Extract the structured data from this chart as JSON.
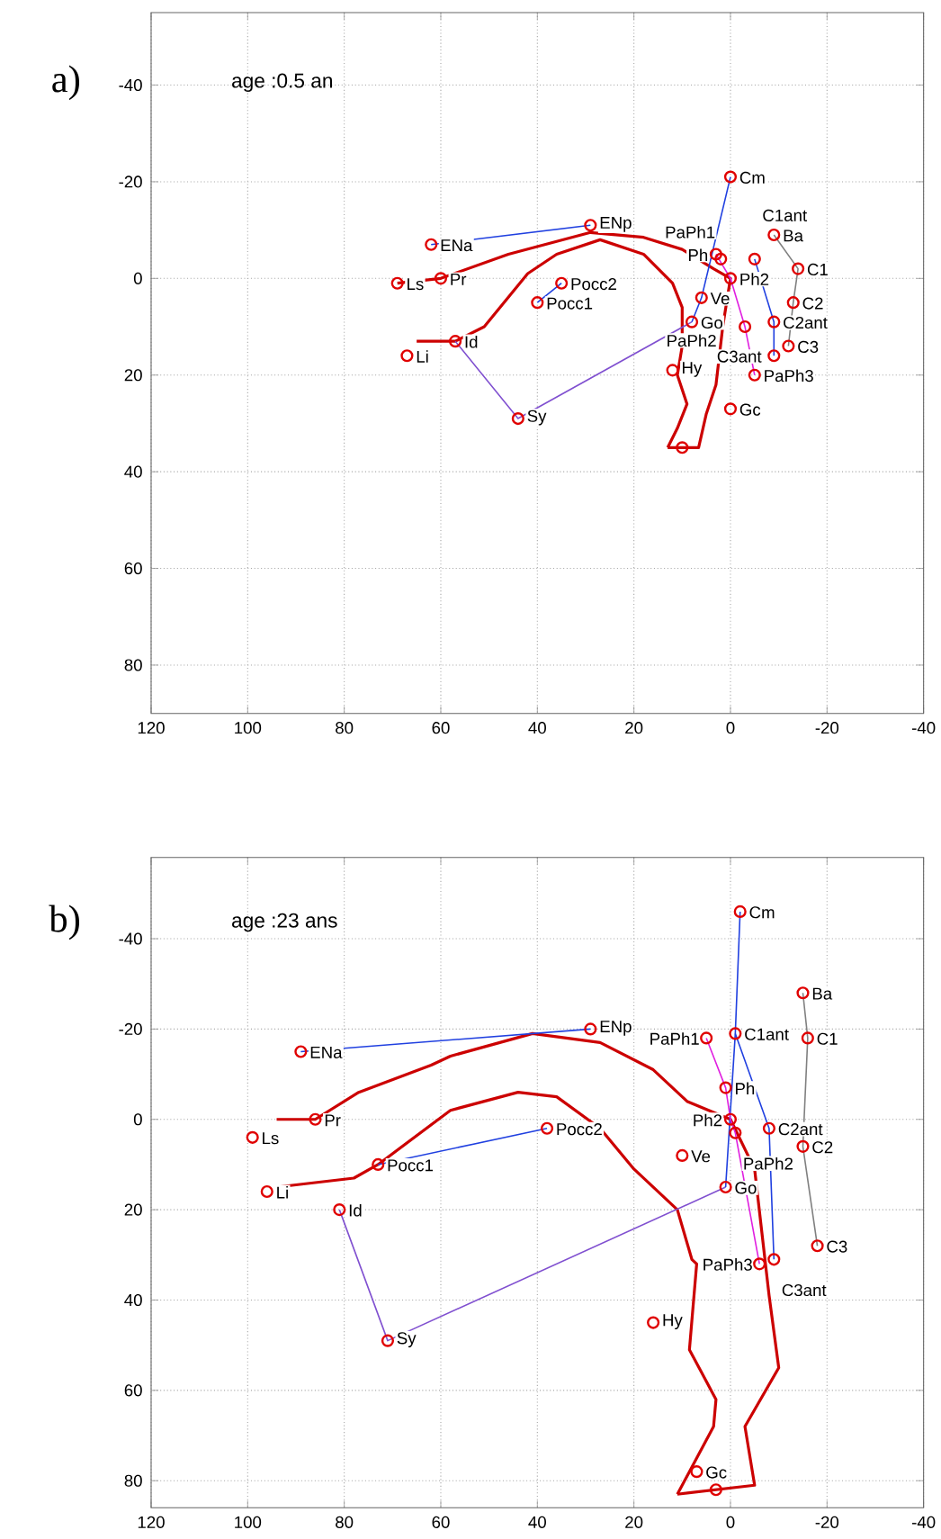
{
  "chart_data": [
    {
      "type": "scatter",
      "title": "a)",
      "xlim": [
        120,
        -40
      ],
      "ylim": [
        90,
        -55
      ],
      "xticks": [
        120,
        100,
        80,
        60,
        40,
        20,
        0,
        -20,
        -40
      ],
      "yticks": [
        -40,
        -20,
        0,
        20,
        40,
        60,
        80
      ],
      "grid": true,
      "series": [
        {
          "type": "line",
          "color": "#cc0000",
          "x": [
            69,
            60,
            46,
            29,
            18,
            10,
            3.5,
            0,
            1.6,
            3,
            5,
            6.6,
            13
          ],
          "values": [
            1,
            0,
            -5,
            -9.5,
            -8.5,
            -6,
            -2,
            0,
            10,
            22,
            28,
            35,
            35
          ]
        },
        {
          "type": "line",
          "color": "#cc0000",
          "x": [
            65,
            57,
            51,
            42,
            36,
            27,
            18,
            12,
            10,
            10,
            11,
            9,
            11,
            13
          ],
          "values": [
            13,
            13,
            10,
            -1,
            -5,
            -8,
            -5,
            1,
            6,
            14,
            20,
            26,
            31,
            35
          ]
        },
        {
          "type": "line",
          "color": "#2040e0",
          "x": [
            62,
            29
          ],
          "values": [
            -7,
            -11
          ]
        },
        {
          "type": "line",
          "color": "#2040e0",
          "x": [
            40,
            35
          ],
          "values": [
            5,
            1
          ]
        },
        {
          "type": "line",
          "color": "#8050d0",
          "x": [
            57,
            44,
            8
          ],
          "values": [
            13,
            29,
            9
          ]
        },
        {
          "type": "line",
          "color": "#2040e0",
          "x": [
            0,
            6,
            8
          ],
          "values": [
            -21,
            4,
            9
          ]
        },
        {
          "type": "line",
          "color": "#2040e0",
          "x": [
            -5,
            -9,
            -9
          ],
          "values": [
            -4,
            9,
            16
          ]
        },
        {
          "type": "line",
          "color": "#e020e0",
          "x": [
            3,
            0,
            -3,
            -5
          ],
          "values": [
            -5,
            0,
            10,
            20
          ]
        },
        {
          "type": "line",
          "color": "#808080",
          "x": [
            -9,
            -14,
            -13,
            -12
          ],
          "values": [
            -9,
            -2,
            5,
            14
          ]
        },
        {
          "marker": "circle",
          "color": "#e00000",
          "x": [
            0,
            -9,
            29,
            62,
            69,
            60,
            35,
            40,
            67,
            57,
            44,
            6,
            8,
            12,
            0,
            10,
            3,
            2,
            0,
            -5,
            -14,
            -13,
            -3,
            -9,
            -12,
            -9,
            -5
          ],
          "values": [
            -21,
            -9,
            -11,
            -7,
            1,
            0,
            1,
            5,
            16,
            13,
            29,
            4,
            9,
            19,
            27,
            35,
            -5,
            -4,
            0,
            -4,
            -2,
            5,
            10,
            9,
            14,
            16,
            20
          ]
        }
      ],
      "annotations": [
        "age :0.5 an",
        {
          "text": "Cm",
          "x": 0,
          "y": -21
        },
        {
          "text": "Ba",
          "x": -9,
          "y": -9
        },
        {
          "text": "ENp",
          "x": 29,
          "y": -11
        },
        {
          "text": "ENa",
          "x": 62,
          "y": -7
        },
        {
          "text": "Ls",
          "x": 69,
          "y": 1
        },
        {
          "text": "Pr",
          "x": 60,
          "y": 0
        },
        {
          "text": "Pocc2",
          "x": 35,
          "y": 1
        },
        {
          "text": "Pocc1",
          "x": 40,
          "y": 5
        },
        {
          "text": "Li",
          "x": 67,
          "y": 16
        },
        {
          "text": "Id",
          "x": 57,
          "y": 13
        },
        {
          "text": "Sy",
          "x": 44,
          "y": 29
        },
        {
          "text": "Ve",
          "x": 6,
          "y": 4
        },
        {
          "text": "Go",
          "x": 8,
          "y": 9
        },
        {
          "text": "Hy",
          "x": 12,
          "y": 19
        },
        {
          "text": "Gc",
          "x": 0,
          "y": 27
        },
        {
          "text": "Ph",
          "x": 3,
          "y": -5
        },
        {
          "text": "PaPh1",
          "x": 2,
          "y": -4
        },
        {
          "text": "Ph2",
          "x": 0,
          "y": 0
        },
        {
          "text": "C1ant",
          "x": -5,
          "y": -4
        },
        {
          "text": "C1",
          "x": -14,
          "y": -2
        },
        {
          "text": "C2",
          "x": -13,
          "y": 5
        },
        {
          "text": "PaPh2",
          "x": -3,
          "y": 10
        },
        {
          "text": "C2ant",
          "x": -9,
          "y": 9
        },
        {
          "text": "C3",
          "x": -12,
          "y": 14
        },
        {
          "text": "C3ant",
          "x": -9,
          "y": 16
        },
        {
          "text": "PaPh3",
          "x": -5,
          "y": 20
        }
      ]
    },
    {
      "type": "scatter",
      "title": "b)",
      "xlim": [
        120,
        -40
      ],
      "ylim": [
        86,
        -58
      ],
      "xticks": [
        120,
        100,
        80,
        60,
        40,
        20,
        0,
        -20,
        -40
      ],
      "yticks": [
        -40,
        -20,
        0,
        20,
        40,
        60,
        80
      ],
      "grid": true,
      "series": [
        {
          "type": "line",
          "color": "#cc0000",
          "x": [
            94,
            86,
            77,
            62,
            58,
            41,
            27,
            16,
            9,
            0,
            -5,
            -8,
            -10,
            -3,
            -5,
            11
          ],
          "values": [
            0,
            0,
            -6,
            -12,
            -14,
            -19,
            -17,
            -11,
            -4,
            0,
            11,
            39,
            55,
            68,
            81,
            83
          ]
        },
        {
          "type": "line",
          "color": "#cc0000",
          "x": [
            94,
            78,
            73,
            58,
            44,
            36,
            27,
            20,
            11,
            8,
            7,
            8.5,
            3,
            3.5,
            11
          ],
          "values": [
            15,
            13,
            10,
            -2,
            -6,
            -5,
            2,
            11,
            20,
            31,
            32,
            51,
            62,
            68,
            83
          ]
        },
        {
          "type": "line",
          "color": "#2040e0",
          "x": [
            89,
            29
          ],
          "values": [
            -15,
            -20
          ]
        },
        {
          "type": "line",
          "color": "#2040e0",
          "x": [
            73,
            38
          ],
          "values": [
            10,
            2
          ]
        },
        {
          "type": "line",
          "color": "#8050d0",
          "x": [
            81,
            71,
            1
          ],
          "values": [
            20,
            49,
            15
          ]
        },
        {
          "type": "line",
          "color": "#2040e0",
          "x": [
            -2,
            -1,
            1
          ],
          "values": [
            -46,
            -19,
            15
          ]
        },
        {
          "type": "line",
          "color": "#2040e0",
          "x": [
            -1,
            -8,
            -9
          ],
          "values": [
            -19,
            2,
            31
          ]
        },
        {
          "type": "line",
          "color": "#e020e0",
          "x": [
            5,
            1,
            0,
            -1,
            -6
          ],
          "values": [
            -18,
            -7,
            0,
            3,
            32
          ]
        },
        {
          "type": "line",
          "color": "#808080",
          "x": [
            -15,
            -16,
            -15,
            -18
          ],
          "values": [
            -28,
            -18,
            6,
            28
          ]
        },
        {
          "marker": "circle",
          "color": "#e00000",
          "x": [
            -2,
            -15,
            -1,
            5,
            -16,
            1,
            0,
            -1,
            -8,
            -15,
            29,
            89,
            86,
            99,
            38,
            73,
            96,
            81,
            71,
            10,
            1,
            16,
            7,
            3,
            -18,
            -9,
            -6
          ],
          "values": [
            -46,
            -28,
            -19,
            -18,
            -18,
            -7,
            0,
            3,
            2,
            6,
            -20,
            -15,
            0,
            4,
            2,
            10,
            16,
            20,
            49,
            8,
            15,
            45,
            78,
            82,
            28,
            31,
            32
          ]
        }
      ],
      "annotations": [
        "age :23 ans",
        {
          "text": "Cm",
          "x": -2,
          "y": -46
        },
        {
          "text": "Ba",
          "x": -15,
          "y": -28
        },
        {
          "text": "C1ant",
          "x": -1,
          "y": -19
        },
        {
          "text": "PaPh1",
          "x": 5,
          "y": -18
        },
        {
          "text": "C1",
          "x": -16,
          "y": -18
        },
        {
          "text": "Ph",
          "x": 1,
          "y": -7
        },
        {
          "text": "Ph2",
          "x": 0,
          "y": 0
        },
        {
          "text": "PaPh2",
          "x": -1,
          "y": 3
        },
        {
          "text": "C2ant",
          "x": -8,
          "y": 2
        },
        {
          "text": "C2",
          "x": -15,
          "y": 6
        },
        {
          "text": "ENp",
          "x": 29,
          "y": -20
        },
        {
          "text": "ENa",
          "x": 89,
          "y": -15
        },
        {
          "text": "Pr",
          "x": 86,
          "y": 0
        },
        {
          "text": "Ls",
          "x": 99,
          "y": 4
        },
        {
          "text": "Pocc2",
          "x": 38,
          "y": 2
        },
        {
          "text": "Pocc1",
          "x": 73,
          "y": 10
        },
        {
          "text": "Li",
          "x": 96,
          "y": 16
        },
        {
          "text": "Id",
          "x": 81,
          "y": 20
        },
        {
          "text": "Sy",
          "x": 71,
          "y": 49
        },
        {
          "text": "Ve",
          "x": 10,
          "y": 8
        },
        {
          "text": "Go",
          "x": 1,
          "y": 15
        },
        {
          "text": "Hy",
          "x": 16,
          "y": 45
        },
        {
          "text": "Gc",
          "x": 7,
          "y": 78
        },
        {
          "text": "C3",
          "x": -18,
          "y": 28
        },
        {
          "text": "C3ant",
          "x": -9,
          "y": 31
        },
        {
          "text": "PaPh3",
          "x": -6,
          "y": 32
        }
      ]
    }
  ]
}
